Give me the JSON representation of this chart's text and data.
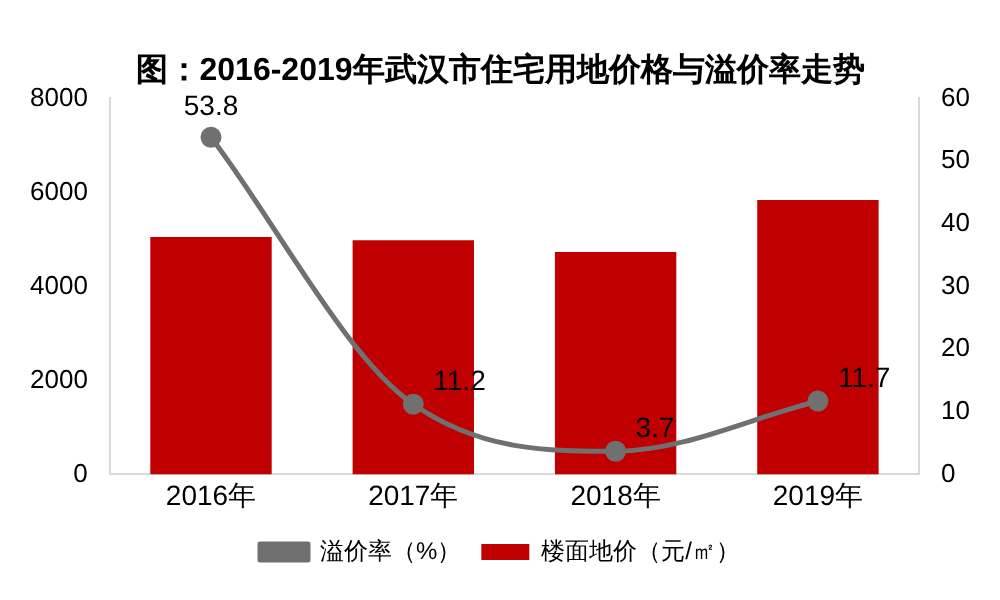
{
  "chart_data": {
    "type": "bar",
    "title": "图：2016-2019年武汉市住宅用地价格与溢价率走势",
    "categories": [
      "2016年",
      "2017年",
      "2018年",
      "2019年"
    ],
    "series": [
      {
        "name": "楼面地价（元/㎡）",
        "color": "#c00000",
        "values": [
          5050,
          4980,
          4730,
          5840
        ]
      },
      {
        "name": "溢价率（%）",
        "type": "line",
        "axis": "y2",
        "color": "#707070",
        "values": [
          53.8,
          11.2,
          3.7,
          11.7
        ],
        "value_labels": [
          "53.8",
          "11.2",
          "3.7",
          "11.7"
        ]
      }
    ],
    "ylim": [
      0,
      8000
    ],
    "yticks": [
      0,
      2000,
      4000,
      6000,
      8000
    ],
    "y2lim": [
      0,
      60
    ],
    "y2ticks": [
      0,
      10,
      20,
      30,
      40,
      50,
      60
    ],
    "legend": "bottom",
    "grid": false,
    "marker": "circle",
    "line_style": "solid"
  }
}
